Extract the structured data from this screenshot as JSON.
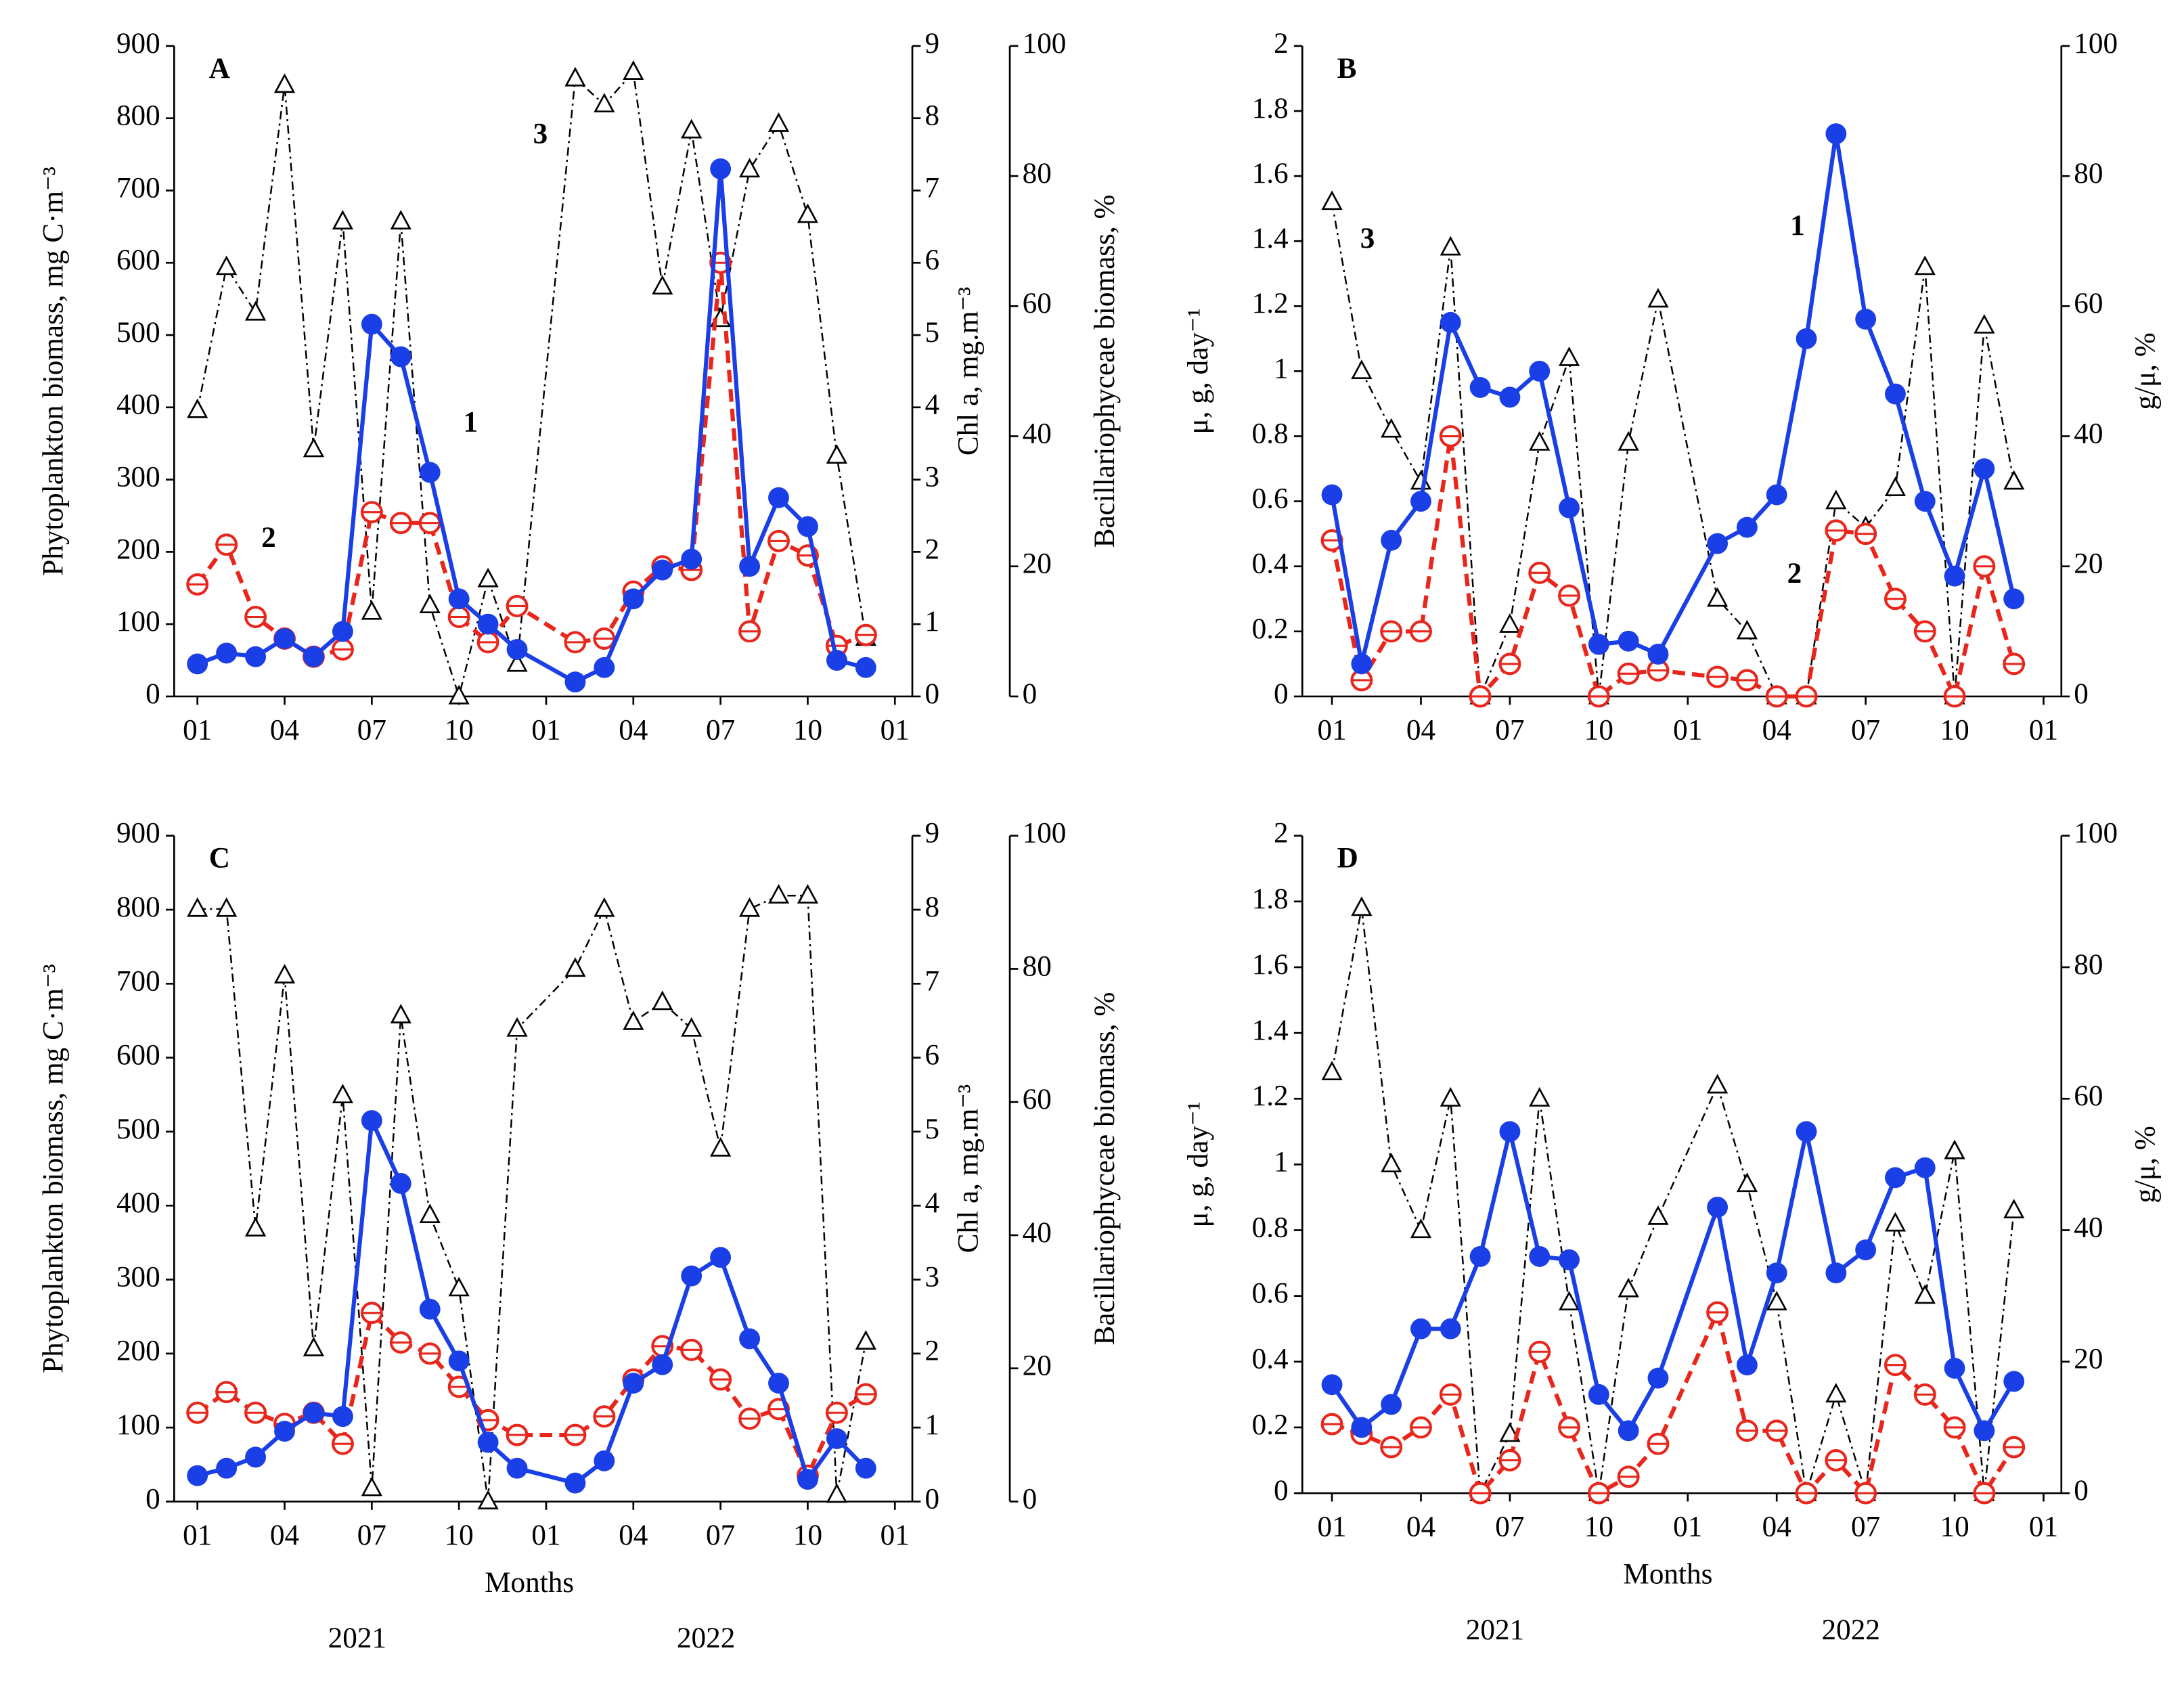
{
  "chart_data": [
    {
      "type": "line",
      "label": "A",
      "ylabel": "Phytoplankton biomass, mg C·m⁻³",
      "y2label": "Chl a, mg.m⁻³",
      "y3label": "Bacillariophyceae biomass, %",
      "xlim": [
        0.2,
        25.6
      ],
      "xticks": [
        {
          "value": 1,
          "label": "01"
        },
        {
          "value": 4,
          "label": "04"
        },
        {
          "value": 7,
          "label": "07"
        },
        {
          "value": 10,
          "label": "10"
        },
        {
          "value": 13,
          "label": "01"
        },
        {
          "value": 16,
          "label": "04"
        },
        {
          "value": 19,
          "label": "07"
        },
        {
          "value": 22,
          "label": "10"
        },
        {
          "value": 25,
          "label": "01"
        }
      ],
      "ylim": [
        0,
        900
      ],
      "yticks": [
        0,
        100,
        200,
        300,
        400,
        500,
        600,
        700,
        800,
        900
      ],
      "y2lim": [
        0,
        9
      ],
      "y2ticks": [
        0,
        1,
        2,
        3,
        4,
        5,
        6,
        7,
        8,
        9
      ],
      "y3lim": [
        0,
        100
      ],
      "y3ticks": [
        0,
        20,
        40,
        60,
        80,
        100
      ],
      "x": [
        1,
        2,
        3,
        4,
        5,
        6,
        7,
        8,
        9,
        10,
        11,
        12,
        14,
        15,
        16,
        17,
        18,
        19,
        20,
        21,
        22,
        23,
        24
      ],
      "series": [
        {
          "color": "#1a3fe6",
          "marker": "filled-circle",
          "values": [
            45,
            60,
            55,
            80,
            55,
            90,
            515,
            470,
            310,
            135,
            100,
            65,
            20,
            40,
            135,
            175,
            190,
            730,
            180,
            275,
            235,
            50,
            40
          ]
        },
        {
          "color": "#e8261c",
          "marker": "open-circle",
          "axis": "y2",
          "values": [
            1.55,
            2.1,
            1.1,
            0.8,
            0.55,
            0.65,
            2.55,
            2.4,
            2.4,
            1.1,
            0.75,
            1.25,
            0.75,
            0.8,
            1.45,
            1.8,
            1.75,
            6.0,
            0.9,
            2.15,
            1.95,
            0.7,
            0.85
          ]
        },
        {
          "color": "#000000",
          "marker": "triangle",
          "axis": "y3",
          "values": [
            44,
            66,
            59,
            94,
            38,
            73,
            13,
            73,
            14,
            0,
            18,
            5,
            95,
            91,
            96,
            63,
            87,
            58,
            81,
            88,
            74,
            37,
            9
          ]
        }
      ],
      "annotations": [
        {
          "text": "1",
          "x": 10.4,
          "y": 376
        },
        {
          "text": "2",
          "x": 3.45,
          "y": 216
        },
        {
          "text": "3",
          "x": 12.8,
          "y": 775
        }
      ]
    },
    {
      "type": "line",
      "label": "B",
      "ylabel": "μ, g, day⁻¹",
      "y2label": "g/μ, %",
      "xlim": [
        0,
        25.6
      ],
      "xticks": [
        {
          "value": 1,
          "label": "01"
        },
        {
          "value": 4,
          "label": "04"
        },
        {
          "value": 7,
          "label": "07"
        },
        {
          "value": 10,
          "label": "10"
        },
        {
          "value": 13,
          "label": "01"
        },
        {
          "value": 16,
          "label": "04"
        },
        {
          "value": 19,
          "label": "07"
        },
        {
          "value": 22,
          "label": "10"
        },
        {
          "value": 25,
          "label": "01"
        }
      ],
      "ylim": [
        0,
        2
      ],
      "yticks": [
        0,
        0.2,
        0.4,
        0.6,
        0.8,
        1,
        1.2,
        1.4,
        1.6,
        1.8,
        2
      ],
      "y2lim": [
        0,
        100
      ],
      "y2ticks": [
        0,
        20,
        40,
        60,
        80,
        100
      ],
      "x": [
        1,
        2,
        3,
        4,
        5,
        6,
        7,
        8,
        9,
        10,
        11,
        12,
        14,
        15,
        16,
        17,
        18,
        19,
        20,
        21,
        22,
        23,
        24
      ],
      "series": [
        {
          "color": "#1a3fe6",
          "marker": "filled-circle",
          "values": [
            0.62,
            0.1,
            0.48,
            0.6,
            1.15,
            0.95,
            0.92,
            1.0,
            0.58,
            0.16,
            0.17,
            0.13,
            0.47,
            0.52,
            0.62,
            1.1,
            1.73,
            1.16,
            0.93,
            0.6,
            0.37,
            0.7,
            0.3
          ]
        },
        {
          "color": "#e8261c",
          "marker": "open-circle",
          "values": [
            0.48,
            0.05,
            0.2,
            0.2,
            0.8,
            0,
            0.1,
            0.38,
            0.31,
            0,
            0.07,
            0.08,
            0.06,
            0.05,
            0,
            0,
            0.51,
            0.5,
            0.3,
            0.2,
            0,
            0.4,
            0.1
          ]
        },
        {
          "color": "#000000",
          "marker": "triangle",
          "axis": "y2",
          "values": [
            76,
            50,
            41,
            33,
            69,
            0,
            11,
            39,
            52,
            0,
            39,
            61,
            15,
            10,
            0,
            0,
            30,
            26,
            32,
            66,
            0,
            57,
            33
          ]
        }
      ],
      "annotations": [
        {
          "text": "1",
          "x": 16.7,
          "y": 1.44
        },
        {
          "text": "3",
          "x": 2.2,
          "y": 1.4
        },
        {
          "text": "2",
          "x": 16.6,
          "y": 0.37
        }
      ]
    },
    {
      "type": "line",
      "label": "C",
      "ylabel": "Phytoplankton biomass, mg C·m⁻³",
      "y2label": "Chl a, mg.m⁻³",
      "y3label": "Bacillariophyceae biomass, %",
      "xlabel": "Months",
      "years": [
        "2021",
        "2022"
      ],
      "xlim": [
        0.2,
        25.6
      ],
      "xticks": [
        {
          "value": 1,
          "label": "01"
        },
        {
          "value": 4,
          "label": "04"
        },
        {
          "value": 7,
          "label": "07"
        },
        {
          "value": 10,
          "label": "10"
        },
        {
          "value": 13,
          "label": "01"
        },
        {
          "value": 16,
          "label": "04"
        },
        {
          "value": 19,
          "label": "07"
        },
        {
          "value": 22,
          "label": "10"
        },
        {
          "value": 25,
          "label": "01"
        }
      ],
      "ylim": [
        0,
        900
      ],
      "yticks": [
        0,
        100,
        200,
        300,
        400,
        500,
        600,
        700,
        800,
        900
      ],
      "y2lim": [
        0,
        9
      ],
      "y2ticks": [
        0,
        1,
        2,
        3,
        4,
        5,
        6,
        7,
        8,
        9
      ],
      "y3lim": [
        0,
        100
      ],
      "y3ticks": [
        0,
        20,
        40,
        60,
        80,
        100
      ],
      "x": [
        1,
        2,
        3,
        4,
        5,
        6,
        7,
        8,
        9,
        10,
        11,
        12,
        14,
        15,
        16,
        17,
        18,
        19,
        20,
        21,
        22,
        23,
        24
      ],
      "series": [
        {
          "color": "#1a3fe6",
          "marker": "filled-circle",
          "values": [
            35,
            45,
            60,
            95,
            120,
            115,
            515,
            430,
            260,
            190,
            80,
            45,
            25,
            55,
            160,
            185,
            305,
            330,
            220,
            160,
            30,
            85,
            45
          ]
        },
        {
          "color": "#e8261c",
          "marker": "open-circle",
          "axis": "y2",
          "values": [
            1.2,
            1.48,
            1.2,
            1.05,
            1.2,
            0.78,
            2.55,
            2.15,
            2.0,
            1.55,
            1.1,
            0.9,
            0.9,
            1.15,
            1.65,
            2.1,
            2.05,
            1.65,
            1.12,
            1.25,
            0.35,
            1.2,
            1.45
          ]
        },
        {
          "color": "#000000",
          "marker": "triangle",
          "axis": "y3",
          "values": [
            89,
            89,
            41,
            79,
            23,
            61,
            2,
            73,
            43,
            32,
            0,
            71,
            80,
            89,
            72,
            75,
            71,
            53,
            89,
            91,
            91,
            1,
            24
          ]
        }
      ]
    },
    {
      "type": "line",
      "label": "D",
      "ylabel": "μ, g, day⁻¹",
      "y2label": "g/μ, %",
      "xlabel": "Months",
      "years": [
        "2021",
        "2022"
      ],
      "xlim": [
        0,
        25.6
      ],
      "xticks": [
        {
          "value": 1,
          "label": "01"
        },
        {
          "value": 4,
          "label": "04"
        },
        {
          "value": 7,
          "label": "07"
        },
        {
          "value": 10,
          "label": "10"
        },
        {
          "value": 13,
          "label": "01"
        },
        {
          "value": 16,
          "label": "04"
        },
        {
          "value": 19,
          "label": "07"
        },
        {
          "value": 22,
          "label": "10"
        },
        {
          "value": 25,
          "label": "01"
        }
      ],
      "ylim": [
        0,
        2
      ],
      "yticks": [
        0,
        0.2,
        0.4,
        0.6,
        0.8,
        1,
        1.2,
        1.4,
        1.6,
        1.8,
        2
      ],
      "y2lim": [
        0,
        100
      ],
      "y2ticks": [
        0,
        20,
        40,
        60,
        80,
        100
      ],
      "x": [
        1,
        2,
        3,
        4,
        5,
        6,
        7,
        8,
        9,
        10,
        11,
        12,
        14,
        15,
        16,
        17,
        18,
        19,
        20,
        21,
        22,
        23,
        24
      ],
      "series": [
        {
          "color": "#1a3fe6",
          "marker": "filled-circle",
          "values": [
            0.33,
            0.2,
            0.27,
            0.5,
            0.5,
            0.72,
            1.1,
            0.72,
            0.71,
            0.3,
            0.19,
            0.35,
            0.87,
            0.39,
            0.67,
            1.1,
            0.67,
            0.74,
            0.96,
            0.99,
            0.38,
            0.19,
            0.34
          ]
        },
        {
          "color": "#e8261c",
          "marker": "open-circle",
          "values": [
            0.21,
            0.18,
            0.14,
            0.2,
            0.3,
            0,
            0.1,
            0.43,
            0.2,
            0,
            0.05,
            0.15,
            0.55,
            0.19,
            0.19,
            0,
            0.1,
            0,
            0.39,
            0.3,
            0.2,
            0,
            0.14
          ]
        },
        {
          "color": "#000000",
          "marker": "triangle",
          "axis": "y2",
          "values": [
            64,
            89,
            50,
            40,
            60,
            0,
            9,
            60,
            29,
            0,
            31,
            42,
            62,
            47,
            29,
            0,
            15,
            0,
            41,
            30,
            52,
            0,
            43
          ]
        }
      ]
    }
  ]
}
